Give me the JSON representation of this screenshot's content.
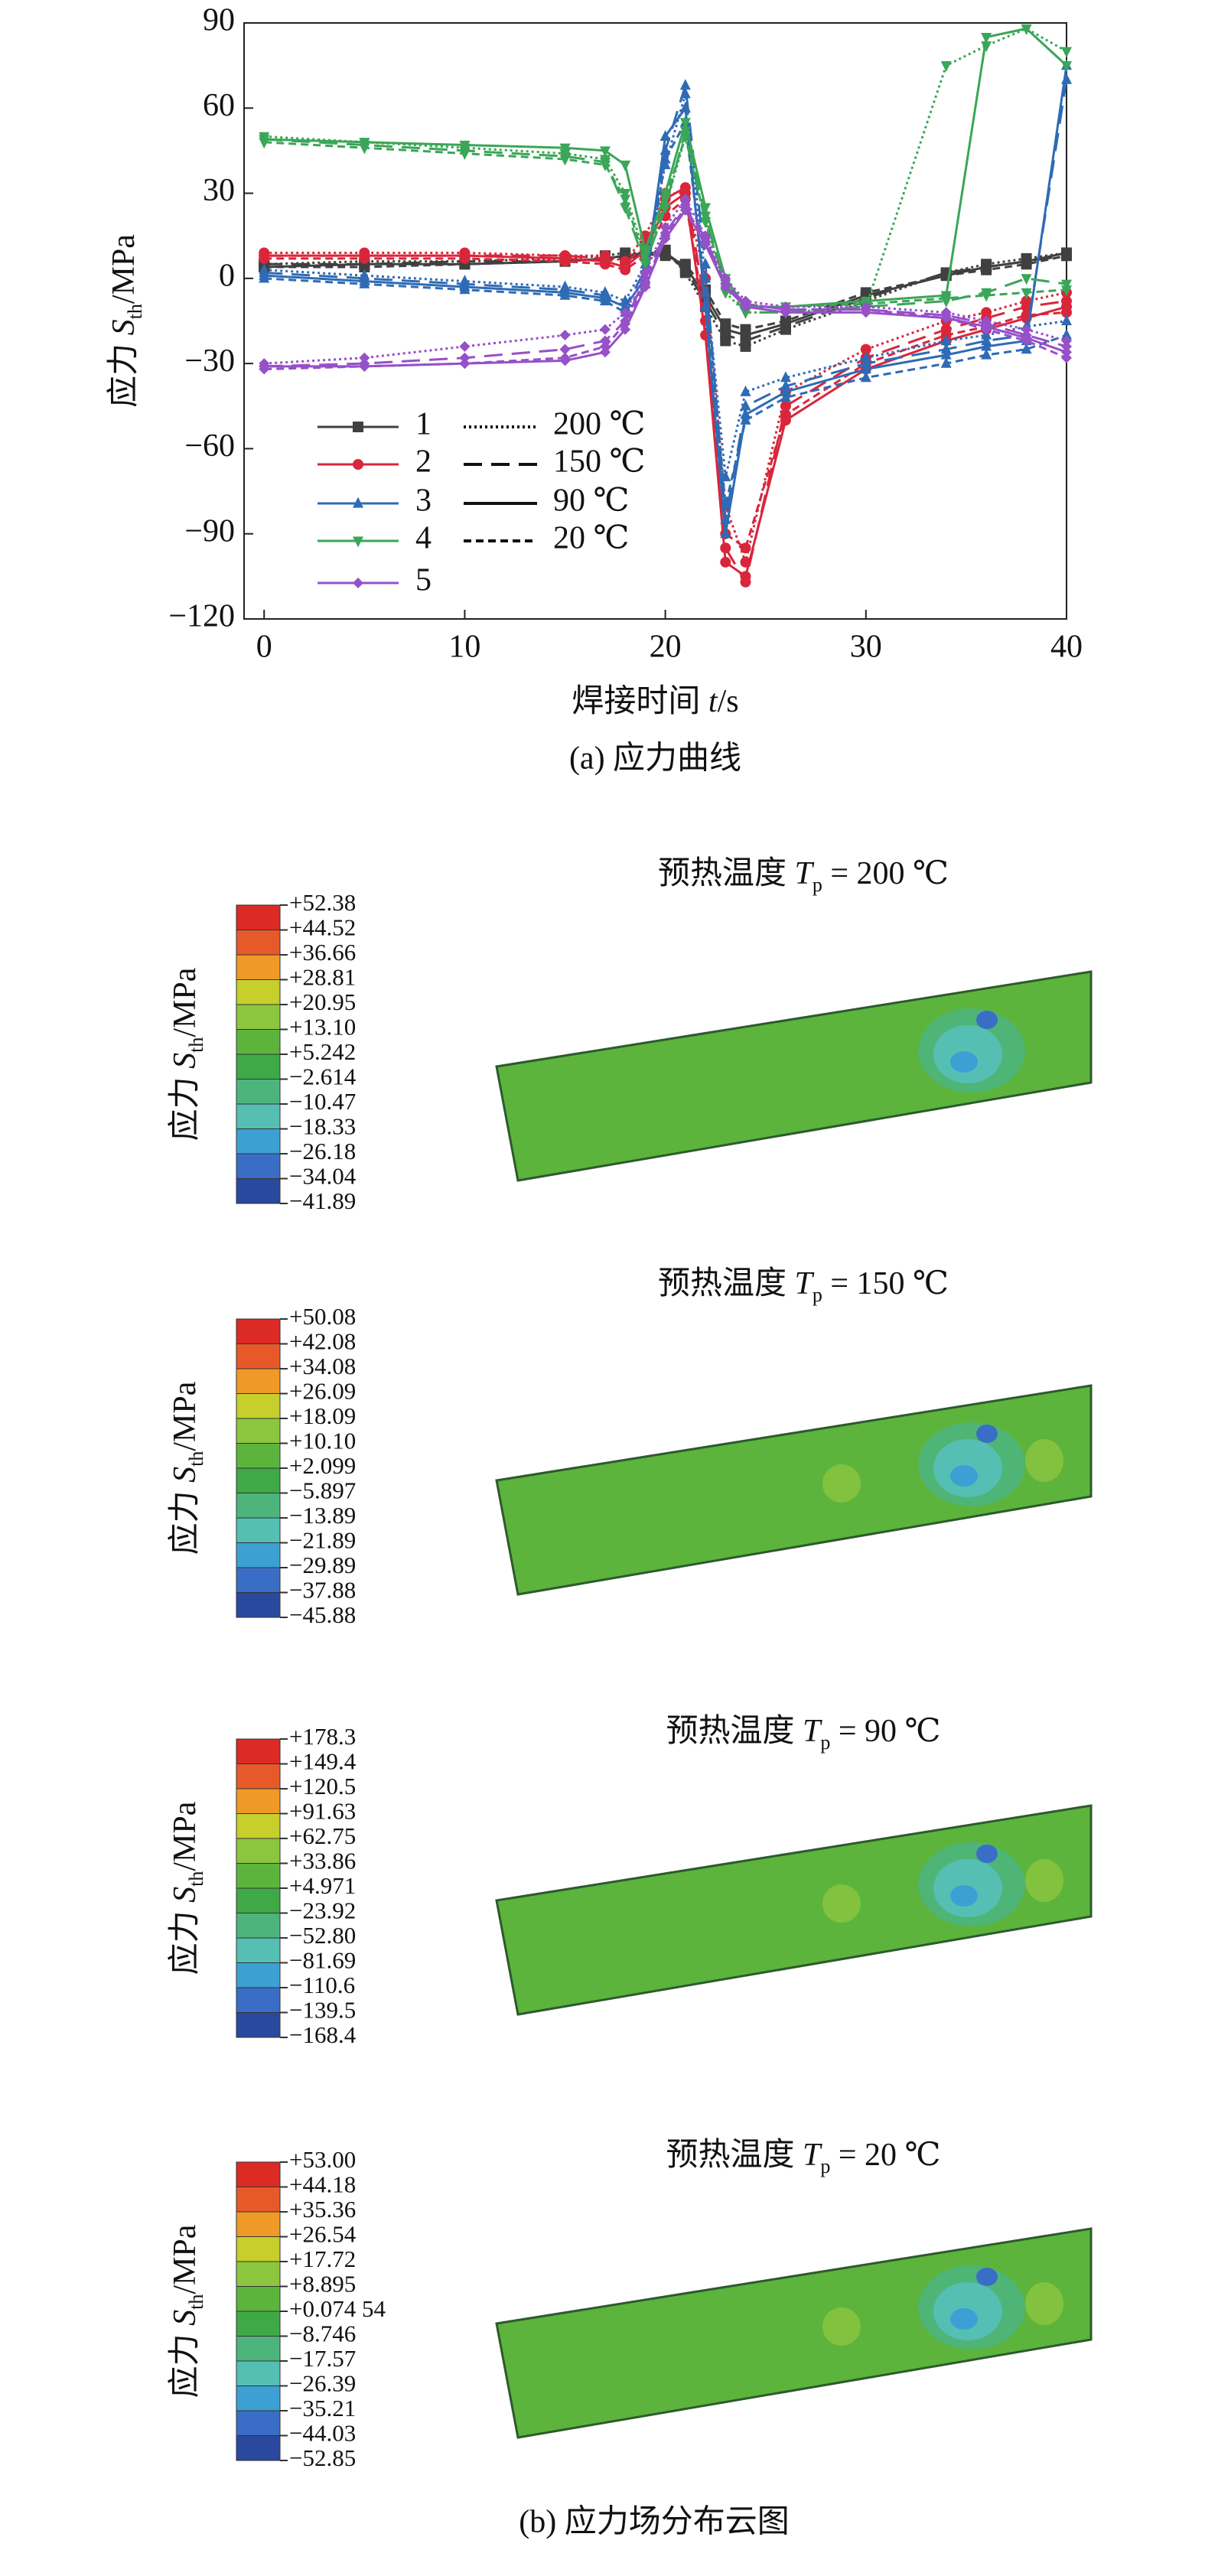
{
  "chart_data": {
    "type": "line",
    "x_label": {
      "text": "焊接时间 ",
      "symbol": "t",
      "unit": "/s"
    },
    "y_label": {
      "text": "应力 ",
      "symbol": "S",
      "subscript": "th",
      "unit": "/MPa"
    },
    "caption": "(a) 应力曲线",
    "xlim": [
      -1,
      40
    ],
    "xticks": [
      0,
      10,
      20,
      30,
      40
    ],
    "ylim": [
      -120,
      90
    ],
    "yticks": [
      {
        "value": -120,
        "label": "−120"
      },
      {
        "value": -90,
        "label": "−90"
      },
      {
        "value": -60,
        "label": "−60"
      },
      {
        "value": -30,
        "label": "−30"
      },
      0,
      30,
      60,
      90
    ],
    "x": [
      0,
      5,
      10,
      15,
      17,
      18,
      19,
      20,
      21,
      22,
      23,
      24,
      26,
      30,
      34,
      36,
      38,
      40
    ],
    "temperatures": [
      {
        "name": "200 ℃",
        "dash": "dotted"
      },
      {
        "name": "150 ℃",
        "dash": "long-dash"
      },
      {
        "name": "90 ℃",
        "dash": "solid"
      },
      {
        "name": "20 ℃",
        "dash": "short-dash"
      }
    ],
    "locations": [
      {
        "name": "1",
        "color": "#404040",
        "marker": "square",
        "curves": [
          {
            "values": [
              5,
              6,
              6,
              7,
              8,
              9,
              9,
              10,
              2,
              -10,
              -22,
              -24,
              -18,
              -8,
              2,
              5,
              7,
              9
            ]
          },
          {
            "values": [
              5,
              5,
              6,
              6,
              7,
              8,
              9,
              9,
              3,
              -8,
              -20,
              -22,
              -17,
              -7,
              2,
              4,
              6,
              8
            ]
          },
          {
            "values": [
              4,
              5,
              5,
              6,
              7,
              8,
              8,
              9,
              4,
              -6,
              -18,
              -20,
              -16,
              -6,
              1,
              4,
              6,
              9
            ]
          },
          {
            "values": [
              4,
              4,
              5,
              6,
              7,
              7,
              8,
              8,
              5,
              -4,
              -16,
              -18,
              -15,
              -5,
              1,
              3,
              5,
              8
            ]
          }
        ]
      },
      {
        "name": "2",
        "color": "#d9263b",
        "marker": "circle",
        "curves": [
          {
            "values": [
              9,
              9,
              9,
              8,
              8,
              6,
              15,
              30,
              30,
              0,
              -80,
              -100,
              -40,
              -25,
              -15,
              -12,
              -8,
              -5
            ]
          },
          {
            "values": [
              8,
              8,
              8,
              8,
              7,
              5,
              12,
              28,
              32,
              -10,
              -95,
              -107,
              -45,
              -28,
              -18,
              -14,
              -10,
              -8
            ]
          },
          {
            "values": [
              8,
              8,
              8,
              7,
              6,
              4,
              10,
              25,
              30,
              -20,
              -100,
              -105,
              -50,
              -32,
              -22,
              -18,
              -14,
              -10
            ]
          },
          {
            "values": [
              7,
              7,
              7,
              6,
              5,
              3,
              8,
              22,
              28,
              -15,
              -90,
              -95,
              -48,
              -30,
              -20,
              -17,
              -13,
              -12
            ]
          }
        ]
      },
      {
        "name": "3",
        "color": "#2e6bb5",
        "marker": "triangle-up",
        "curves": [
          {
            "values": [
              3,
              1,
              -1,
              -3,
              -5,
              -8,
              5,
              40,
              65,
              0,
              -70,
              -40,
              -35,
              -28,
              -22,
              -20,
              -17,
              -15
            ]
          },
          {
            "values": [
              2,
              0,
              -2,
              -4,
              -6,
              -10,
              3,
              45,
              68,
              5,
              -85,
              -45,
              -38,
              -30,
              -25,
              -22,
              -20,
              70
            ]
          },
          {
            "values": [
              1,
              -1,
              -3,
              -5,
              -7,
              -10,
              0,
              50,
              60,
              -10,
              -90,
              -48,
              -40,
              -32,
              -27,
              -24,
              -22,
              75
            ]
          },
          {
            "values": [
              0,
              -2,
              -4,
              -6,
              -8,
              -12,
              -2,
              42,
              55,
              -5,
              -80,
              -50,
              -42,
              -35,
              -30,
              -27,
              -25,
              -20
            ]
          }
        ]
      },
      {
        "name": "4",
        "color": "#3aa657",
        "marker": "triangle-down",
        "curves": [
          {
            "values": [
              50,
              48,
              46,
              44,
              42,
              30,
              8,
              25,
              50,
              20,
              -5,
              -12,
              -12,
              -10,
              75,
              82,
              88,
              80
            ]
          },
          {
            "values": [
              49,
              47,
              45,
              43,
              41,
              25,
              5,
              25,
              52,
              22,
              -3,
              -12,
              -12,
              -10,
              -8,
              -5,
              0,
              -2
            ]
          },
          {
            "values": [
              49,
              48,
              47,
              46,
              45,
              40,
              10,
              30,
              55,
              25,
              0,
              -10,
              -10,
              -8,
              -6,
              85,
              88,
              75
            ]
          },
          {
            "values": [
              48,
              46,
              44,
              42,
              40,
              28,
              6,
              28,
              50,
              20,
              -2,
              -10,
              -10,
              -9,
              -7,
              -6,
              -5,
              -4
            ]
          }
        ]
      },
      {
        "name": "5",
        "color": "#9650c8",
        "marker": "diamond",
        "curves": [
          {
            "values": [
              -30,
              -28,
              -24,
              -20,
              -18,
              -12,
              2,
              18,
              28,
              15,
              0,
              -8,
              -10,
              -10,
              -12,
              -15,
              -18,
              -22
            ]
          },
          {
            "values": [
              -31,
              -30,
              -28,
              -25,
              -22,
              -15,
              0,
              16,
              26,
              14,
              -2,
              -9,
              -11,
              -11,
              -13,
              -16,
              -20,
              -24
            ]
          },
          {
            "values": [
              -31,
              -31,
              -30,
              -29,
              -26,
              -18,
              -3,
              14,
              24,
              12,
              -3,
              -10,
              -12,
              -12,
              -14,
              -17,
              -21,
              -26
            ]
          },
          {
            "values": [
              -32,
              -31,
              -30,
              -28,
              -24,
              -16,
              -2,
              15,
              25,
              13,
              -2,
              -9,
              -11,
              -11,
              -14,
              -18,
              -22,
              -28
            ]
          }
        ]
      }
    ]
  },
  "fields": {
    "caption": "(b) 应力场分布云图",
    "y_label": {
      "text": "应力 ",
      "symbol": "S",
      "subscript": "th",
      "unit": "/MPa"
    },
    "panels": [
      {
        "title": {
          "text": "预热温度 ",
          "symbol": "T",
          "subscript": "p",
          "value": " = 200 ℃"
        },
        "colorbar": [
          {
            "value": 52.38,
            "label": "+52.38"
          },
          {
            "value": 44.52,
            "label": "+44.52"
          },
          {
            "value": 36.66,
            "label": "+36.66"
          },
          {
            "value": 28.81,
            "label": "+28.81"
          },
          {
            "value": 20.95,
            "label": "+20.95"
          },
          {
            "value": 13.1,
            "label": "+13.10"
          },
          {
            "value": 5.242,
            "label": "+5.242"
          },
          {
            "value": -2.614,
            "label": "−2.614"
          },
          {
            "value": -10.47,
            "label": "−10.47"
          },
          {
            "value": -18.33,
            "label": "−18.33"
          },
          {
            "value": -26.18,
            "label": "−26.18"
          },
          {
            "value": -34.04,
            "label": "−34.04"
          },
          {
            "value": -41.89,
            "label": "−41.89"
          }
        ]
      },
      {
        "title": {
          "text": "预热温度 ",
          "symbol": "T",
          "subscript": "p",
          "value": " = 150 ℃"
        },
        "colorbar": [
          {
            "value": 50.08,
            "label": "+50.08"
          },
          {
            "value": 42.08,
            "label": "+42.08"
          },
          {
            "value": 34.08,
            "label": "+34.08"
          },
          {
            "value": 26.09,
            "label": "+26.09"
          },
          {
            "value": 18.09,
            "label": "+18.09"
          },
          {
            "value": 10.1,
            "label": "+10.10"
          },
          {
            "value": 2.099,
            "label": "+2.099"
          },
          {
            "value": -5.897,
            "label": "−5.897"
          },
          {
            "value": -13.89,
            "label": "−13.89"
          },
          {
            "value": -21.89,
            "label": "−21.89"
          },
          {
            "value": -29.89,
            "label": "−29.89"
          },
          {
            "value": -37.88,
            "label": "−37.88"
          },
          {
            "value": -45.88,
            "label": "−45.88"
          }
        ]
      },
      {
        "title": {
          "text": "预热温度 ",
          "symbol": "T",
          "subscript": "p",
          "value": " = 90 ℃"
        },
        "colorbar": [
          {
            "value": 178.3,
            "label": "+178.3"
          },
          {
            "value": 149.4,
            "label": "+149.4"
          },
          {
            "value": 120.5,
            "label": "+120.5"
          },
          {
            "value": 91.63,
            "label": "+91.63"
          },
          {
            "value": 62.75,
            "label": "+62.75"
          },
          {
            "value": 33.86,
            "label": "+33.86"
          },
          {
            "value": 4.971,
            "label": "+4.971"
          },
          {
            "value": -23.92,
            "label": "−23.92"
          },
          {
            "value": -52.8,
            "label": "−52.80"
          },
          {
            "value": -81.69,
            "label": "−81.69"
          },
          {
            "value": -110.6,
            "label": "−110.6"
          },
          {
            "value": -139.5,
            "label": "−139.5"
          },
          {
            "value": -168.4,
            "label": "−168.4"
          }
        ]
      },
      {
        "title": {
          "text": "预热温度 ",
          "symbol": "T",
          "subscript": "p",
          "value": " = 20 ℃"
        },
        "colorbar": [
          {
            "value": 53.0,
            "label": "+53.00"
          },
          {
            "value": 44.18,
            "label": "+44.18"
          },
          {
            "value": 35.36,
            "label": "+35.36"
          },
          {
            "value": 26.54,
            "label": "+26.54"
          },
          {
            "value": 17.72,
            "label": "+17.72"
          },
          {
            "value": 8.895,
            "label": "+8.895"
          },
          {
            "value": 0.07454,
            "label": "+0.074 54"
          },
          {
            "value": -8.746,
            "label": "−8.746"
          },
          {
            "value": -17.57,
            "label": "−17.57"
          },
          {
            "value": -26.39,
            "label": "−26.39"
          },
          {
            "value": -35.21,
            "label": "−35.21"
          },
          {
            "value": -44.03,
            "label": "−44.03"
          },
          {
            "value": -52.85,
            "label": "−52.85"
          }
        ]
      }
    ]
  }
}
